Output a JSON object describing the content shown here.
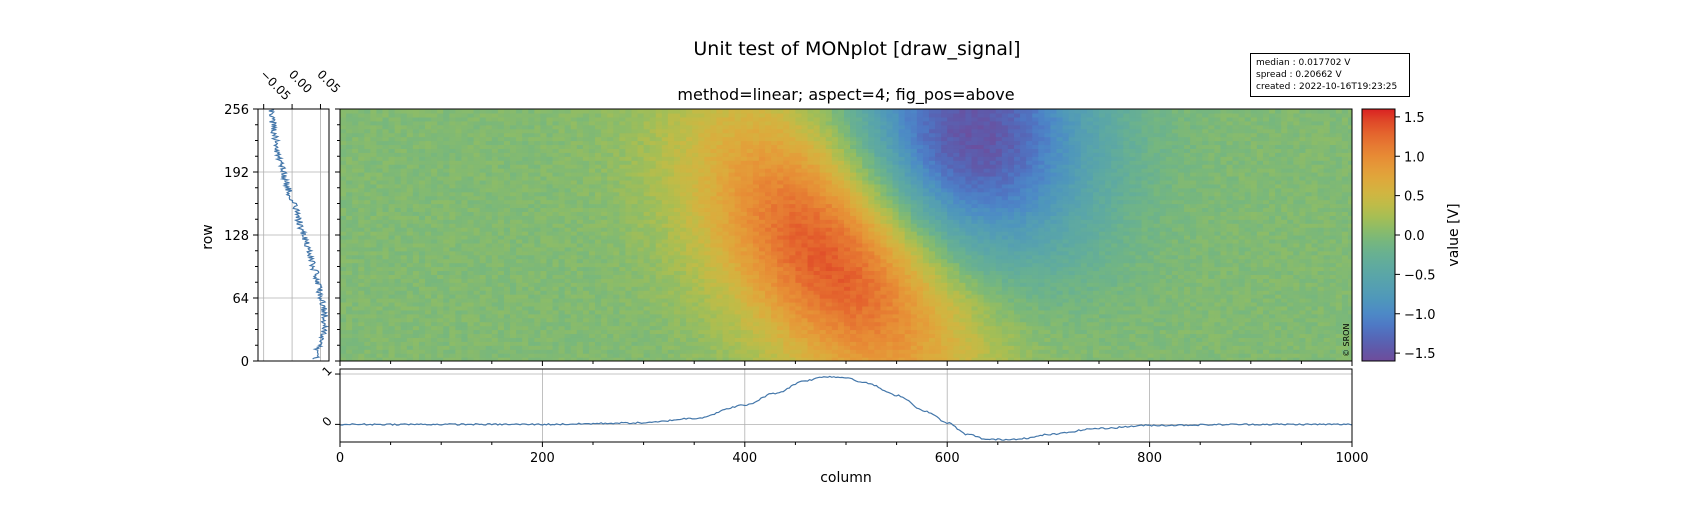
{
  "figure": {
    "suptitle": "Unit test of MONplot [draw_signal]",
    "subtitle": "method=linear; aspect=4; fig_pos=above",
    "copyright": "© SRON"
  },
  "info_box": {
    "median": "median : 0.017702 V",
    "spread": "spread : 0.20662 V",
    "created": "created : 2022-10-16T19:23:25"
  },
  "colors": {
    "line": "#4477AA",
    "grid": "#b0b0b0",
    "colormap": [
      "#6F4C9B",
      "#6059A9",
      "#5568B8",
      "#4E79C5",
      "#4D8AC6",
      "#4E96BC",
      "#549EB3",
      "#59A5A9",
      "#60AB9E",
      "#69B190",
      "#77B77D",
      "#8CBC68",
      "#A6BE54",
      "#BEBC48",
      "#D1B541",
      "#DDAA3C",
      "#E49C39",
      "#E78C35",
      "#E67932",
      "#E4632D",
      "#DF4828",
      "#DA2222"
    ]
  },
  "chart_data": [
    {
      "type": "heatmap",
      "title": "method=linear; aspect=4; fig_pos=above",
      "xlabel": "",
      "ylabel": "row",
      "xlim": [
        0,
        1000
      ],
      "ylim": [
        0,
        256
      ],
      "yticks": [
        "0",
        "64",
        "128",
        "192",
        "256"
      ],
      "colorbar": {
        "label": "value [V]",
        "range": [
          -1.6,
          1.6
        ],
        "ticks": [
          "1.5",
          "1.0",
          "0.5",
          "0.0",
          "−0.5",
          "−1.0",
          "−1.5"
        ]
      },
      "components": [
        {
          "shape": "positive gaussian",
          "center_column": 490,
          "center_row": 110,
          "peak_value": 1.55
        },
        {
          "shape": "negative gaussian",
          "center_column": 620,
          "center_row": 225,
          "peak_value": -1.55
        }
      ]
    },
    {
      "type": "line",
      "title": "",
      "xlabel": "",
      "ylabel": "",
      "orientation": "vertical",
      "xlim": [
        -0.06,
        0.065
      ],
      "ylim": [
        0,
        256
      ],
      "xticks": [
        "−0.05",
        "0.00",
        "0.05"
      ],
      "x": [
        -0.038,
        -0.034,
        -0.032,
        -0.028,
        -0.024,
        -0.018,
        -0.012,
        -0.005,
        0.002,
        0.01,
        0.015,
        0.022,
        0.03,
        0.036,
        0.042,
        0.046,
        0.052,
        0.056,
        0.058,
        0.054,
        0.047,
        0.042
      ],
      "y": [
        256,
        244,
        232,
        220,
        208,
        196,
        184,
        172,
        160,
        148,
        136,
        124,
        112,
        100,
        88,
        76,
        64,
        52,
        40,
        28,
        16,
        2
      ]
    },
    {
      "type": "line",
      "title": "",
      "xlabel": "column",
      "ylabel": "",
      "xlim": [
        0,
        1000
      ],
      "ylim": [
        -0.35,
        1.1
      ],
      "xticks": [
        "0",
        "200",
        "400",
        "600",
        "800",
        "1000"
      ],
      "yticks": [
        "0",
        "1"
      ],
      "x": [
        0,
        100,
        200,
        300,
        350,
        400,
        430,
        460,
        480,
        500,
        520,
        550,
        580,
        600,
        620,
        640,
        660,
        680,
        700,
        750,
        800,
        900,
        1000
      ],
      "y": [
        0.0,
        0.0,
        0.0,
        0.03,
        0.12,
        0.38,
        0.62,
        0.87,
        0.95,
        0.93,
        0.82,
        0.58,
        0.25,
        0.03,
        -0.2,
        -0.3,
        -0.3,
        -0.27,
        -0.2,
        -0.08,
        -0.02,
        0.0,
        0.0
      ]
    }
  ]
}
